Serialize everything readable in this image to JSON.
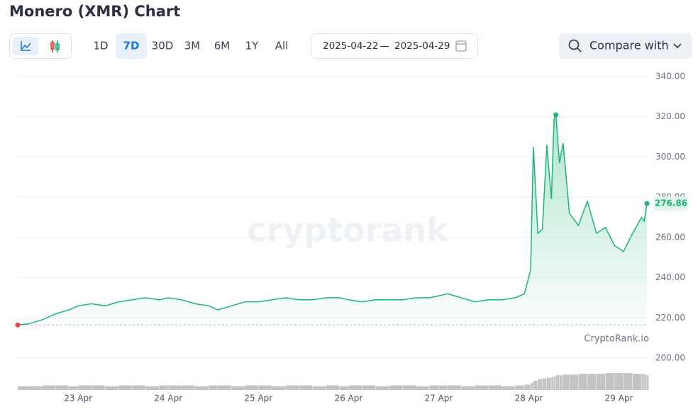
{
  "chart_data": {
    "type": "line",
    "title": "Monero (XMR) Chart",
    "ranges": [
      "1D",
      "7D",
      "30D",
      "3M",
      "6M",
      "1Y",
      "All"
    ],
    "active_range": 1,
    "date_from": "2025-04-22",
    "date_separator": "—",
    "date_to": "2025-04-29",
    "compare": "Compare with",
    "watermark": "cryptorank",
    "source": "CryptoRank.io",
    "x": [
      22.33,
      22.45,
      22.6,
      22.75,
      22.9,
      23.0,
      23.15,
      23.3,
      23.45,
      23.6,
      23.75,
      23.9,
      24.0,
      24.15,
      24.3,
      24.45,
      24.55,
      24.7,
      24.85,
      25.0,
      25.15,
      25.3,
      25.45,
      25.6,
      25.75,
      25.9,
      26.0,
      26.15,
      26.3,
      26.45,
      26.6,
      26.75,
      26.9,
      27.0,
      27.1,
      27.25,
      27.4,
      27.55,
      27.7,
      27.85,
      27.95,
      28.02,
      28.05,
      28.1,
      28.15,
      28.2,
      28.25,
      28.28,
      28.3,
      28.34,
      28.38,
      28.45,
      28.55,
      28.65,
      28.75,
      28.85,
      28.95,
      29.05,
      29.15,
      29.25,
      29.28,
      29.31
    ],
    "series": [
      {
        "name": "XMR",
        "color": "#1fb574",
        "values": [
          216.5,
          217,
          219,
          222,
          224,
          226,
          227,
          226,
          228,
          229,
          230,
          229,
          230,
          229,
          227,
          226,
          224,
          226,
          228,
          228,
          229,
          230,
          229,
          229,
          230,
          230,
          229,
          228,
          229,
          229,
          229,
          230,
          230,
          231,
          232,
          230,
          228,
          229,
          229,
          230,
          232,
          244,
          305,
          262,
          264,
          306,
          279,
          319,
          321,
          297,
          307,
          272,
          266,
          278,
          262,
          265,
          256,
          253,
          262,
          270,
          268,
          276.86
        ]
      }
    ],
    "volume": {
      "color": "#c4c4c4",
      "values": [
        5,
        5,
        6,
        6,
        5,
        6,
        6,
        5,
        6,
        6,
        5,
        6,
        6,
        6,
        5,
        6,
        6,
        5,
        6,
        6,
        5,
        6,
        6,
        5,
        6,
        5,
        6,
        6,
        5,
        6,
        6,
        5,
        6,
        6,
        6,
        5,
        6,
        6,
        5,
        6,
        7,
        9,
        12,
        14,
        15,
        16,
        17,
        18,
        19,
        19,
        20,
        20,
        21,
        21,
        21,
        22,
        22,
        22,
        21,
        21,
        20,
        19
      ]
    },
    "xlim": [
      22.33,
      29.31
    ],
    "xticks": [
      {
        "value": 23,
        "label": "23 Apr"
      },
      {
        "value": 24,
        "label": "24 Apr"
      },
      {
        "value": 25,
        "label": "25 Apr"
      },
      {
        "value": 26,
        "label": "26 Apr"
      },
      {
        "value": 27,
        "label": "27 Apr"
      },
      {
        "value": 28,
        "label": "28 Apr"
      },
      {
        "value": 29,
        "label": "29 Apr"
      }
    ],
    "ylim": [
      200,
      340
    ],
    "yticks": [
      {
        "value": 200,
        "label": "200.00"
      },
      {
        "value": 220,
        "label": "220.00"
      },
      {
        "value": 240,
        "label": "240.00"
      },
      {
        "value": 260,
        "label": "260.00"
      },
      {
        "value": 280,
        "label": "280.00"
      },
      {
        "value": 300,
        "label": "300.00"
      },
      {
        "value": 320,
        "label": "320.00"
      },
      {
        "value": 340,
        "label": "340.00"
      }
    ],
    "grid": true
  }
}
